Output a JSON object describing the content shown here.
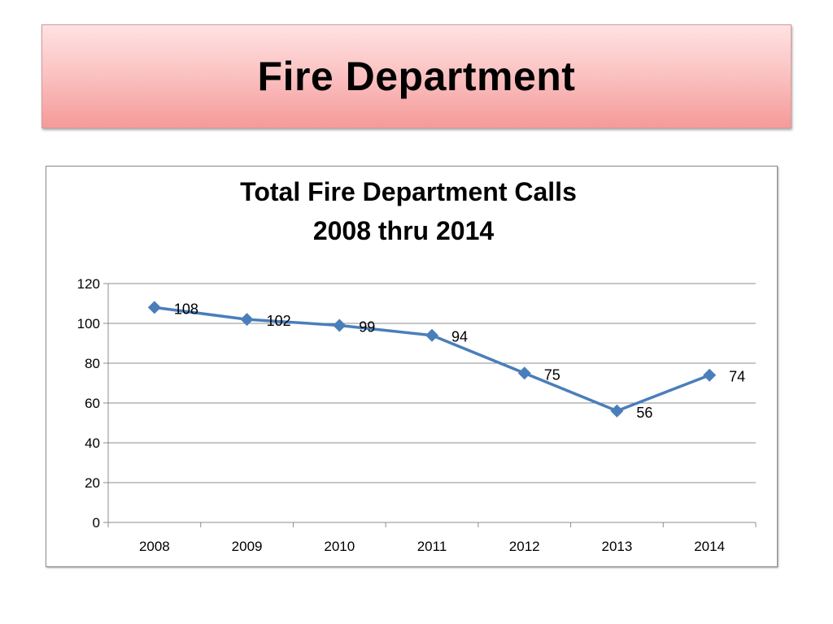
{
  "slide": {
    "title": "Fire Department"
  },
  "chart_data": {
    "type": "line",
    "title_lines": [
      "Total Fire Department Calls",
      "2008 thru 2014"
    ],
    "categories": [
      "2008",
      "2009",
      "2010",
      "2011",
      "2012",
      "2013",
      "2014"
    ],
    "series": [
      {
        "values": [
          108,
          102,
          99,
          94,
          75,
          56,
          74
        ],
        "color": "#4a7ebb",
        "marker": "diamond",
        "data_labels": true
      }
    ],
    "xlabel": "",
    "ylabel": "",
    "ylim": [
      0,
      120
    ],
    "yticks": [
      0,
      20,
      40,
      60,
      80,
      100,
      120
    ],
    "grid": true,
    "legend": "none",
    "colors": {
      "gridline": "#8c8c8c",
      "axis": "#8c8c8c"
    }
  }
}
